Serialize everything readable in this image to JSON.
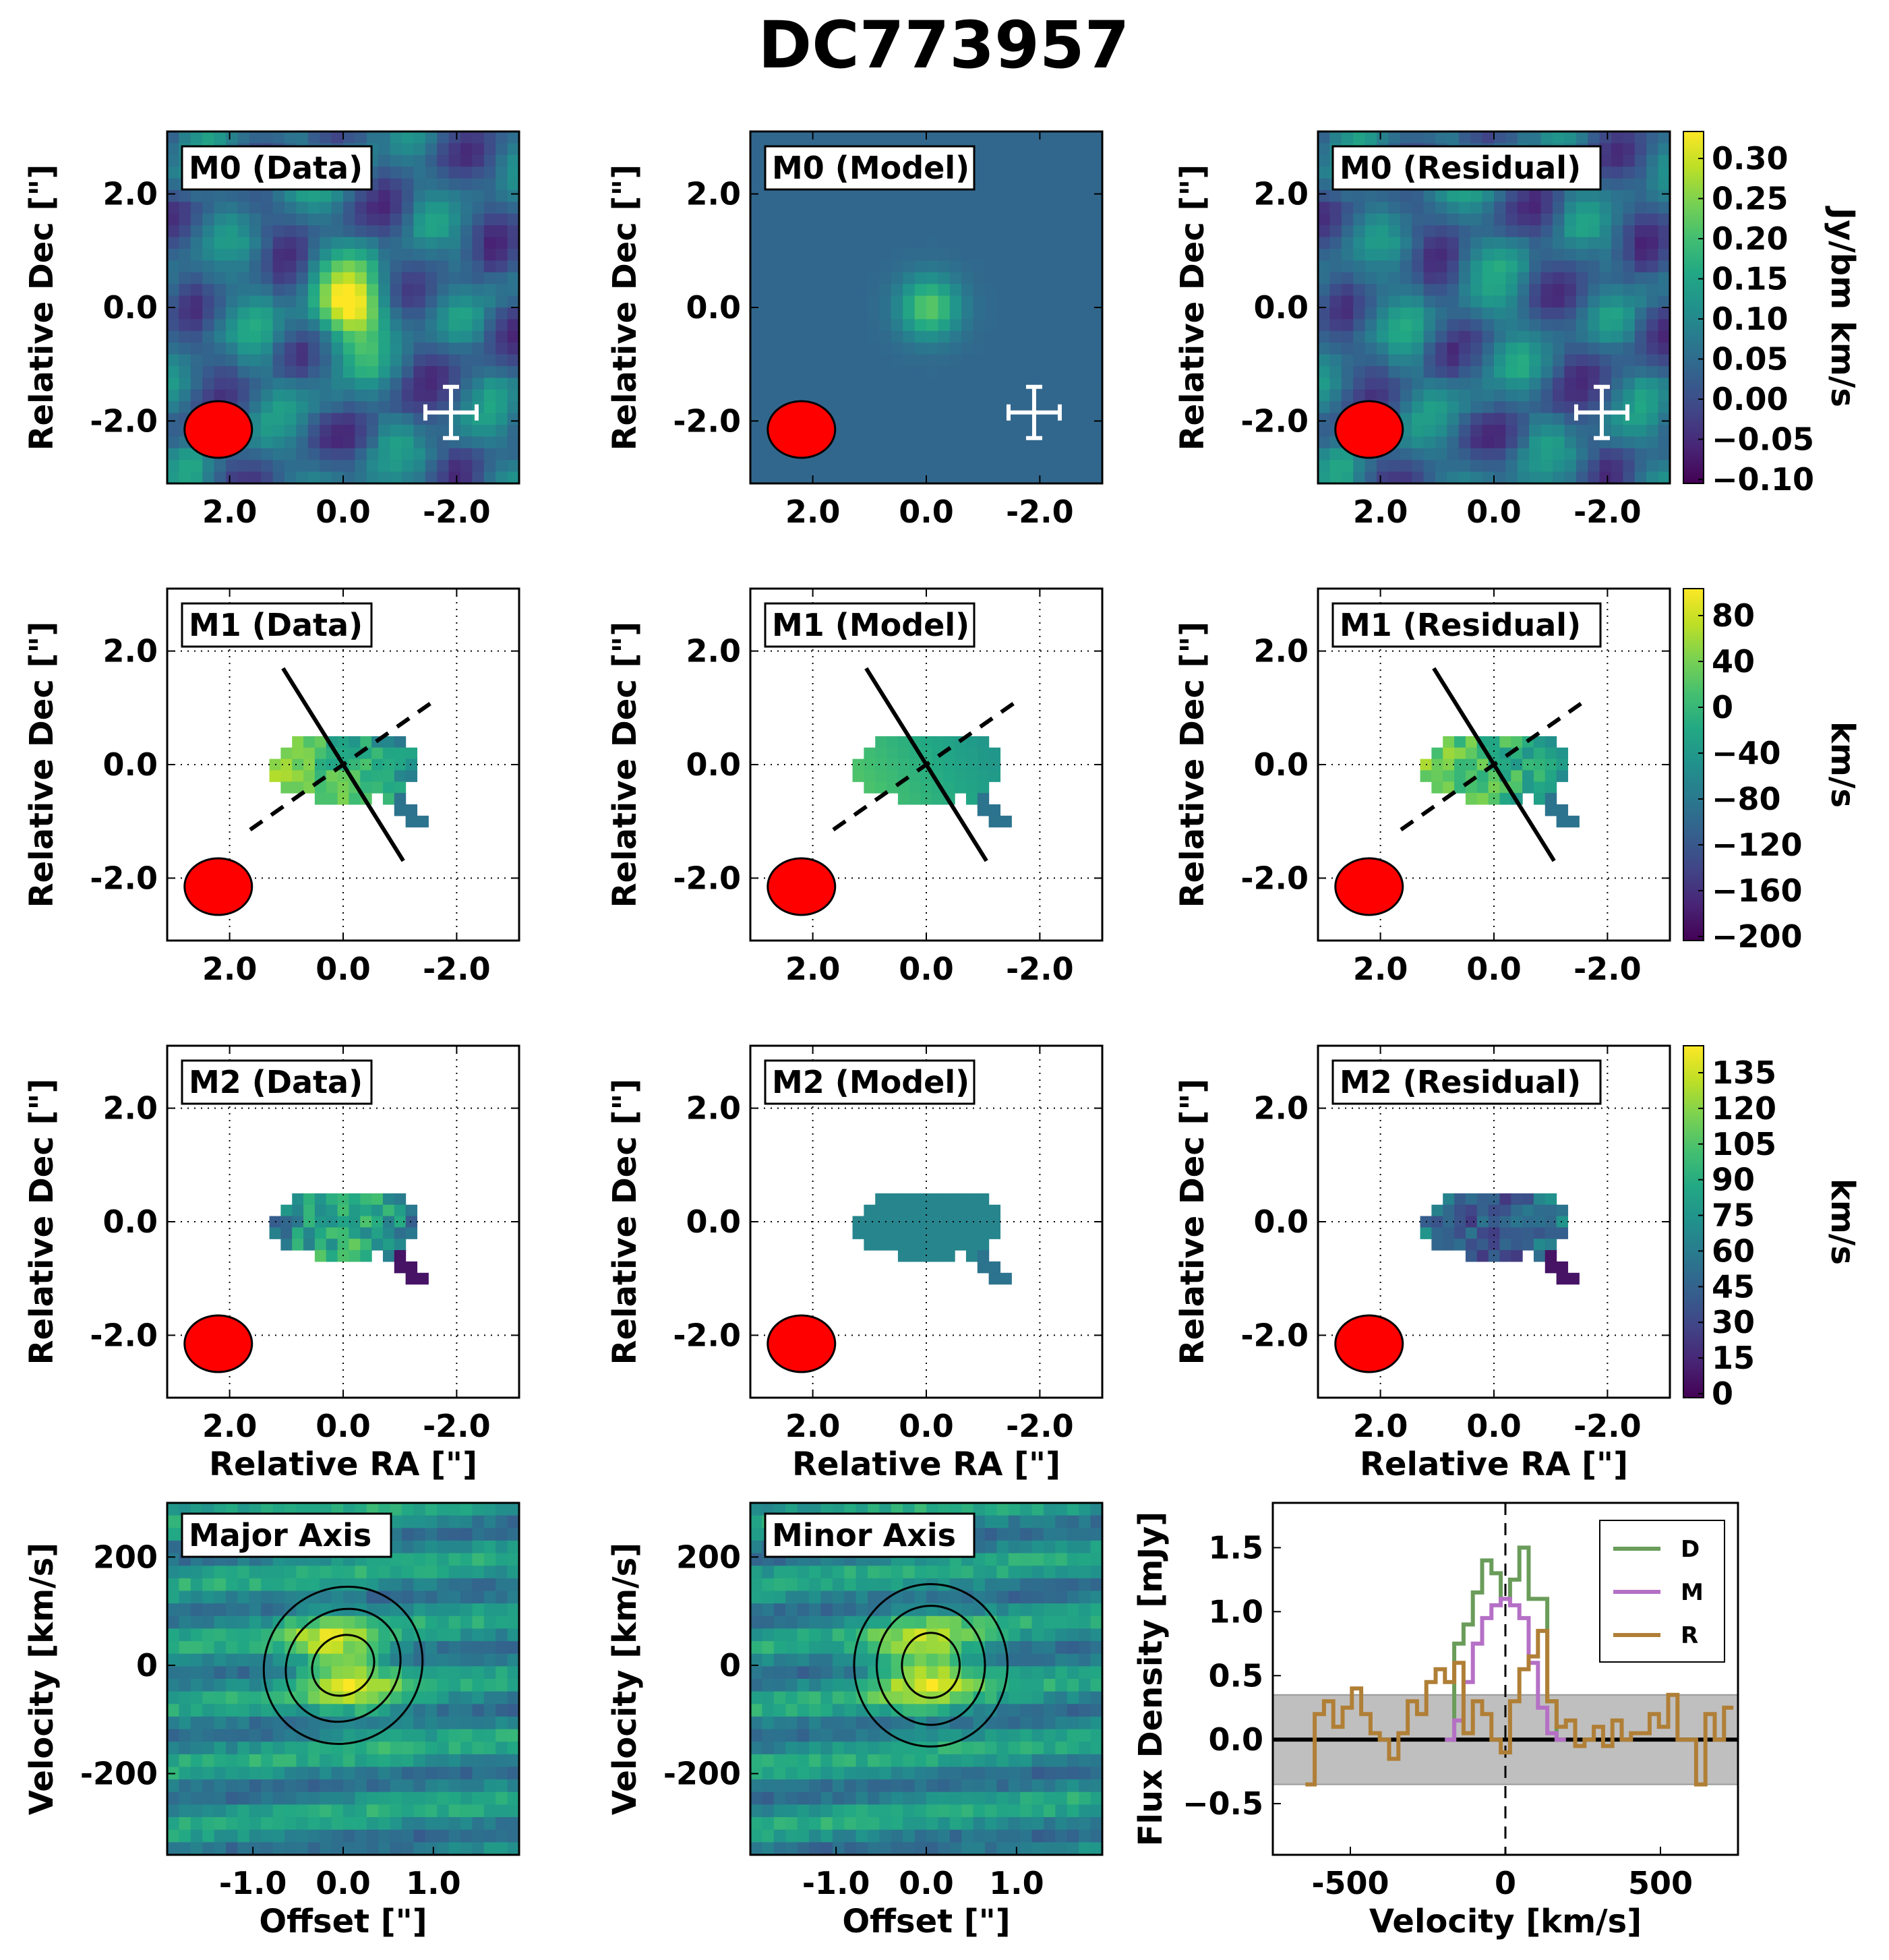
{
  "title": "DC773957",
  "colors": {
    "beam": "#ff0000",
    "map_background": "#3b528b",
    "moment1_series": [
      "#5ec962",
      "#2ab07f",
      "#21918c"
    ],
    "D": "#6a9c5a",
    "M": "#b570c6",
    "R": "#b07f36",
    "noise_band": "#bfbfbf"
  },
  "maps": {
    "xlabel": "Relative RA [\"]",
    "ylabel": "Relative Dec [\"]",
    "xticks": [
      "2.0",
      "0.0",
      "-2.0"
    ],
    "yticks": [
      "2.0",
      "0.0",
      "-2.0"
    ],
    "range": [
      3.1,
      -3.1
    ]
  },
  "rows": [
    {
      "name": "M0",
      "labels": [
        "M0 (Data)",
        "M0 (Model)",
        "M0 (Residual)"
      ],
      "cbar_label": "Jy/bm km/s",
      "cbar_ticks": [
        "0.30",
        "0.25",
        "0.20",
        "0.15",
        "0.10",
        "0.05",
        "0.00",
        "−0.05",
        "−0.10"
      ]
    },
    {
      "name": "M1",
      "labels": [
        "M1 (Data)",
        "M1 (Model)",
        "M1 (Residual)"
      ],
      "cbar_label": "km/s",
      "cbar_ticks": [
        "80",
        "40",
        "0",
        "−40",
        "−80",
        "−120",
        "−160",
        "−200"
      ]
    },
    {
      "name": "M2",
      "labels": [
        "M2 (Data)",
        "M2 (Model)",
        "M2 (Residual)"
      ],
      "cbar_label": "km/s",
      "cbar_ticks": [
        "135",
        "120",
        "105",
        "90",
        "75",
        "60",
        "45",
        "30",
        "15",
        "0"
      ]
    }
  ],
  "pv": {
    "labels": [
      "Major Axis",
      "Minor Axis"
    ],
    "xlabel": "Offset [\"]",
    "ylabel": "Velocity [km/s]",
    "xticks": [
      "-1.0",
      "0.0",
      "1.0"
    ],
    "yticks": [
      "200",
      "0",
      "-200"
    ]
  },
  "chart_data": {
    "type": "line",
    "xlabel": "Velocity [km/s]",
    "ylabel": "Flux Density [mJy]",
    "xlim": [
      -750,
      750
    ],
    "ylim": [
      -0.9,
      1.85
    ],
    "xticks": [
      "-500",
      "0",
      "500"
    ],
    "yticks": [
      "1.5",
      "1.0",
      "0.5",
      "0.0",
      "−0.5"
    ],
    "legend_position": "top-right",
    "noise_band": [
      -0.35,
      0.35
    ],
    "series": [
      {
        "name": "D",
        "x": [
          -180,
          -150,
          -120,
          -90,
          -60,
          -30,
          0,
          30,
          60,
          90,
          120,
          150,
          180
        ],
        "y": [
          0.0,
          0.75,
          0.9,
          1.15,
          1.4,
          1.3,
          1.1,
          1.25,
          1.5,
          1.1,
          1.1,
          0.3,
          0.0
        ]
      },
      {
        "name": "M",
        "x": [
          -180,
          -150,
          -120,
          -90,
          -60,
          -30,
          0,
          30,
          60,
          90,
          120,
          150,
          180
        ],
        "y": [
          0.0,
          0.15,
          0.45,
          0.75,
          0.95,
          1.05,
          1.1,
          1.05,
          0.95,
          0.6,
          0.25,
          0.05,
          0.0
        ]
      },
      {
        "name": "R",
        "x": [
          -630,
          -600,
          -570,
          -540,
          -510,
          -480,
          -450,
          -420,
          -390,
          -360,
          -330,
          -300,
          -270,
          -240,
          -210,
          -180,
          -150,
          -120,
          -90,
          -60,
          -30,
          0,
          30,
          60,
          90,
          120,
          150,
          180,
          210,
          240,
          270,
          300,
          330,
          360,
          390,
          420,
          450,
          480,
          510,
          540,
          570,
          600,
          630,
          660,
          690,
          720
        ],
        "y": [
          -0.35,
          0.2,
          0.3,
          0.1,
          0.25,
          0.4,
          0.2,
          0.05,
          0.0,
          -0.15,
          0.05,
          0.3,
          0.2,
          0.45,
          0.55,
          0.45,
          0.6,
          0.05,
          0.3,
          0.2,
          0.0,
          -0.1,
          0.3,
          0.55,
          0.65,
          0.85,
          0.3,
          0.1,
          0.15,
          -0.05,
          0.0,
          0.1,
          -0.05,
          0.15,
          0.0,
          0.05,
          0.05,
          0.2,
          0.1,
          0.35,
          0.0,
          0.0,
          -0.35,
          0.2,
          0.0,
          0.25
        ]
      }
    ]
  }
}
